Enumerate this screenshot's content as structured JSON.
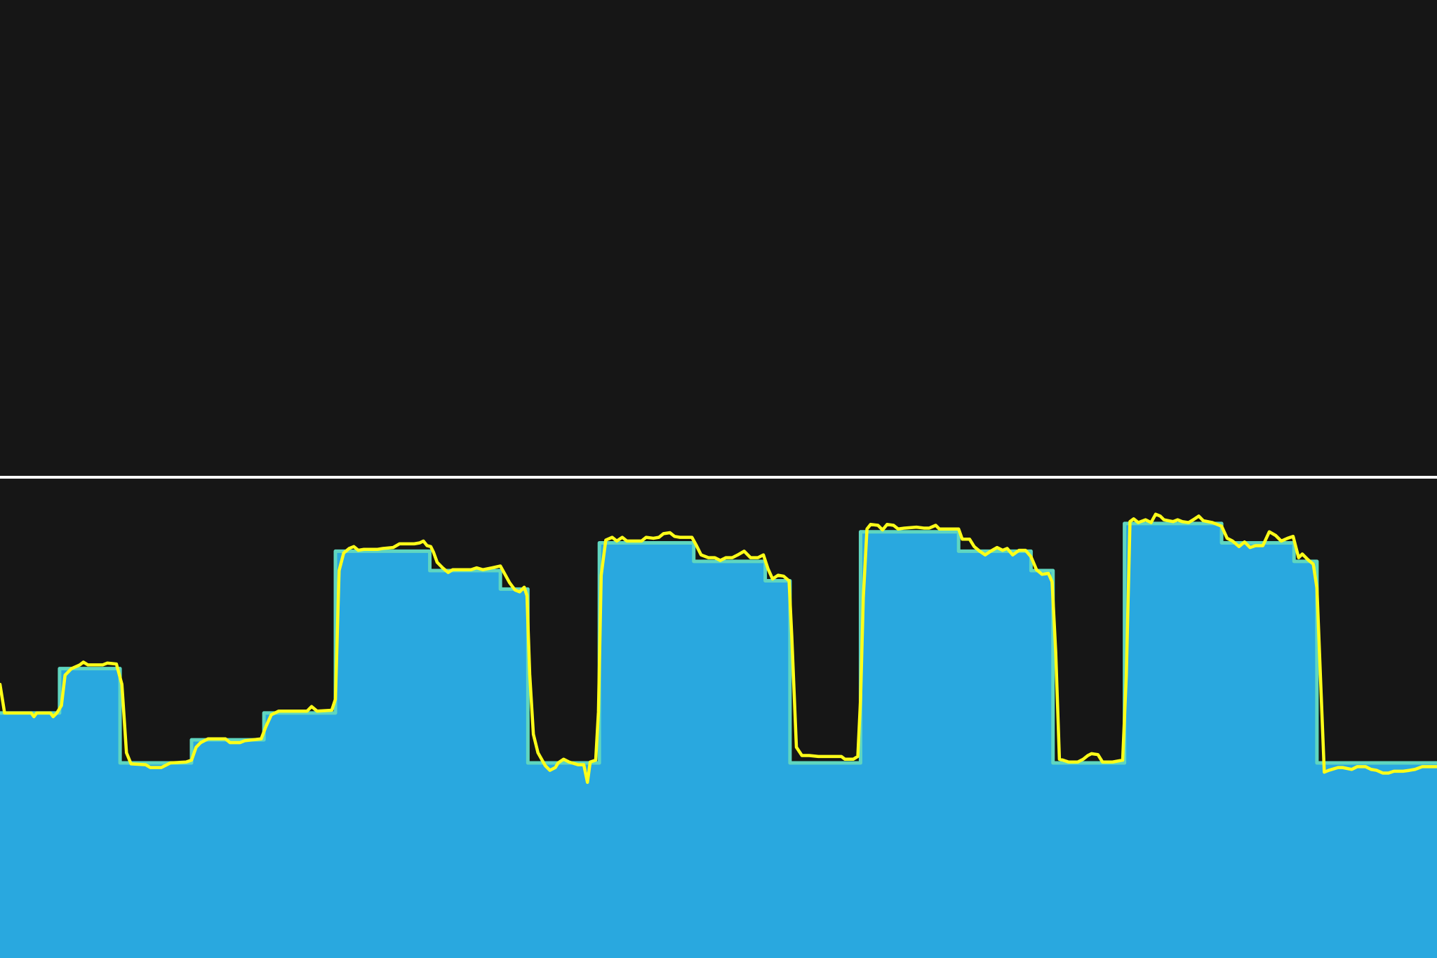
{
  "chart_data": {
    "type": "area",
    "title": "",
    "xlabel": "",
    "ylabel": "",
    "grid": false,
    "legend": "none",
    "xlim": [
      0,
      1568
    ],
    "ylim": [
      0,
      520
    ],
    "reference_line": {
      "y": 520,
      "color": "#ffffff"
    },
    "colors": {
      "background": "#161616",
      "area_fill": "#29a8df",
      "area_edge": "#5fd6c0",
      "overlay_line": "#ffff19",
      "reference_line": "#ffffff"
    },
    "series": [
      {
        "type": "area",
        "step": true,
        "color": "#29a8df",
        "points": [
          [
            0,
            265
          ],
          [
            65,
            265
          ],
          [
            65,
            313
          ],
          [
            131,
            313
          ],
          [
            131,
            211
          ],
          [
            209,
            211
          ],
          [
            209,
            236
          ],
          [
            288,
            236
          ],
          [
            288,
            265
          ],
          [
            366,
            265
          ],
          [
            366,
            440
          ],
          [
            469,
            440
          ],
          [
            469,
            419
          ],
          [
            546,
            419
          ],
          [
            546,
            399
          ],
          [
            576,
            399
          ],
          [
            576,
            211
          ],
          [
            654,
            211
          ],
          [
            654,
            449
          ],
          [
            757,
            449
          ],
          [
            757,
            429
          ],
          [
            835,
            429
          ],
          [
            835,
            408
          ],
          [
            862,
            408
          ],
          [
            862,
            211
          ],
          [
            939,
            211
          ],
          [
            939,
            461
          ],
          [
            1046,
            461
          ],
          [
            1046,
            440
          ],
          [
            1125,
            440
          ],
          [
            1125,
            419
          ],
          [
            1149,
            419
          ],
          [
            1149,
            211
          ],
          [
            1227,
            211
          ],
          [
            1227,
            470
          ],
          [
            1333,
            470
          ],
          [
            1333,
            449
          ],
          [
            1412,
            449
          ],
          [
            1412,
            429
          ],
          [
            1437,
            429
          ],
          [
            1437,
            211
          ],
          [
            1568,
            211
          ]
        ]
      },
      {
        "type": "line",
        "color": "#ffff19",
        "points": [
          [
            0,
            296
          ],
          [
            5,
            265
          ],
          [
            34,
            265
          ],
          [
            37,
            261
          ],
          [
            40,
            265
          ],
          [
            55,
            265
          ],
          [
            58,
            261
          ],
          [
            62,
            265
          ],
          [
            67,
            273
          ],
          [
            71,
            306
          ],
          [
            78,
            313
          ],
          [
            87,
            317
          ],
          [
            91,
            320
          ],
          [
            96,
            317
          ],
          [
            112,
            317
          ],
          [
            117,
            319
          ],
          [
            127,
            318
          ],
          [
            133,
            296
          ],
          [
            138,
            222
          ],
          [
            143,
            210
          ],
          [
            159,
            209
          ],
          [
            164,
            206
          ],
          [
            176,
            206
          ],
          [
            186,
            211
          ],
          [
            203,
            212
          ],
          [
            209,
            214
          ],
          [
            214,
            228
          ],
          [
            219,
            233
          ],
          [
            227,
            237
          ],
          [
            246,
            237
          ],
          [
            251,
            233
          ],
          [
            262,
            233
          ],
          [
            267,
            235
          ],
          [
            285,
            237
          ],
          [
            290,
            250
          ],
          [
            296,
            263
          ],
          [
            304,
            267
          ],
          [
            335,
            267
          ],
          [
            340,
            272
          ],
          [
            346,
            267
          ],
          [
            362,
            268
          ],
          [
            366,
            280
          ],
          [
            370,
            419
          ],
          [
            375,
            438
          ],
          [
            381,
            443
          ],
          [
            386,
            445
          ],
          [
            391,
            441
          ],
          [
            397,
            442
          ],
          [
            405,
            442
          ],
          [
            412,
            442
          ],
          [
            418,
            443
          ],
          [
            429,
            444
          ],
          [
            436,
            448
          ],
          [
            445,
            448
          ],
          [
            452,
            448
          ],
          [
            458,
            449
          ],
          [
            462,
            451
          ],
          [
            466,
            446
          ],
          [
            470,
            445
          ],
          [
            473,
            439
          ],
          [
            477,
            428
          ],
          [
            483,
            422
          ],
          [
            489,
            417
          ],
          [
            494,
            420
          ],
          [
            498,
            420
          ],
          [
            506,
            420
          ],
          [
            514,
            420
          ],
          [
            520,
            422
          ],
          [
            527,
            420
          ],
          [
            537,
            422
          ],
          [
            546,
            424
          ],
          [
            551,
            415
          ],
          [
            556,
            406
          ],
          [
            562,
            398
          ],
          [
            567,
            396
          ],
          [
            572,
            401
          ],
          [
            575,
            392
          ],
          [
            578,
            307
          ],
          [
            582,
            242
          ],
          [
            587,
            222
          ],
          [
            595,
            208
          ],
          [
            600,
            203
          ],
          [
            606,
            206
          ],
          [
            609,
            211
          ],
          [
            615,
            215
          ],
          [
            621,
            212
          ],
          [
            631,
            209
          ],
          [
            637,
            209
          ],
          [
            641,
            190
          ],
          [
            644,
            212
          ],
          [
            650,
            214
          ],
          [
            653,
            266
          ],
          [
            656,
            414
          ],
          [
            661,
            452
          ],
          [
            668,
            455
          ],
          [
            673,
            451
          ],
          [
            679,
            455
          ],
          [
            684,
            451
          ],
          [
            694,
            451
          ],
          [
            700,
            451
          ],
          [
            705,
            455
          ],
          [
            713,
            454
          ],
          [
            719,
            455
          ],
          [
            724,
            459
          ],
          [
            731,
            460
          ],
          [
            736,
            456
          ],
          [
            742,
            455
          ],
          [
            749,
            455
          ],
          [
            755,
            455
          ],
          [
            760,
            446
          ],
          [
            765,
            436
          ],
          [
            773,
            433
          ],
          [
            780,
            433
          ],
          [
            786,
            430
          ],
          [
            792,
            433
          ],
          [
            799,
            433
          ],
          [
            805,
            436
          ],
          [
            812,
            440
          ],
          [
            819,
            433
          ],
          [
            827,
            433
          ],
          [
            833,
            436
          ],
          [
            838,
            421
          ],
          [
            843,
            410
          ],
          [
            849,
            414
          ],
          [
            855,
            413
          ],
          [
            861,
            408
          ],
          [
            864,
            347
          ],
          [
            869,
            228
          ],
          [
            875,
            219
          ],
          [
            883,
            219
          ],
          [
            893,
            218
          ],
          [
            911,
            218
          ],
          [
            918,
            218
          ],
          [
            922,
            215
          ],
          [
            931,
            215
          ],
          [
            936,
            218
          ],
          [
            939,
            280
          ],
          [
            942,
            390
          ],
          [
            946,
            464
          ],
          [
            950,
            469
          ],
          [
            958,
            468
          ],
          [
            963,
            463
          ],
          [
            968,
            469
          ],
          [
            975,
            468
          ],
          [
            980,
            464
          ],
          [
            987,
            465
          ],
          [
            1000,
            466
          ],
          [
            1008,
            465
          ],
          [
            1014,
            465
          ],
          [
            1021,
            468
          ],
          [
            1025,
            464
          ],
          [
            1046,
            464
          ],
          [
            1050,
            453
          ],
          [
            1058,
            453
          ],
          [
            1063,
            445
          ],
          [
            1069,
            440
          ],
          [
            1075,
            436
          ],
          [
            1081,
            440
          ],
          [
            1088,
            444
          ],
          [
            1094,
            441
          ],
          [
            1099,
            443
          ],
          [
            1105,
            436
          ],
          [
            1112,
            441
          ],
          [
            1119,
            441
          ],
          [
            1125,
            434
          ],
          [
            1131,
            420
          ],
          [
            1137,
            415
          ],
          [
            1144,
            416
          ],
          [
            1148,
            407
          ],
          [
            1152,
            330
          ],
          [
            1156,
            215
          ],
          [
            1160,
            214
          ],
          [
            1166,
            212
          ],
          [
            1176,
            212
          ],
          [
            1182,
            215
          ],
          [
            1187,
            219
          ],
          [
            1191,
            221
          ],
          [
            1198,
            220
          ],
          [
            1203,
            212
          ],
          [
            1214,
            212
          ],
          [
            1225,
            214
          ],
          [
            1229,
            306
          ],
          [
            1233,
            472
          ],
          [
            1237,
            475
          ],
          [
            1242,
            471
          ],
          [
            1250,
            474
          ],
          [
            1256,
            471
          ],
          [
            1261,
            480
          ],
          [
            1266,
            478
          ],
          [
            1270,
            474
          ],
          [
            1275,
            473
          ],
          [
            1280,
            472
          ],
          [
            1285,
            474
          ],
          [
            1290,
            472
          ],
          [
            1297,
            471
          ],
          [
            1302,
            474
          ],
          [
            1308,
            478
          ],
          [
            1313,
            473
          ],
          [
            1323,
            471
          ],
          [
            1333,
            467
          ],
          [
            1339,
            454
          ],
          [
            1345,
            451
          ],
          [
            1352,
            445
          ],
          [
            1358,
            450
          ],
          [
            1364,
            444
          ],
          [
            1370,
            446
          ],
          [
            1378,
            446
          ],
          [
            1385,
            461
          ],
          [
            1392,
            457
          ],
          [
            1398,
            451
          ],
          [
            1405,
            454
          ],
          [
            1411,
            456
          ],
          [
            1417,
            433
          ],
          [
            1421,
            437
          ],
          [
            1427,
            431
          ],
          [
            1433,
            426
          ],
          [
            1437,
            400
          ],
          [
            1441,
            300
          ],
          [
            1445,
            201
          ],
          [
            1450,
            203
          ],
          [
            1460,
            206
          ],
          [
            1465,
            206
          ],
          [
            1475,
            204
          ],
          [
            1481,
            207
          ],
          [
            1490,
            207
          ],
          [
            1496,
            204
          ],
          [
            1502,
            203
          ],
          [
            1509,
            200
          ],
          [
            1515,
            200
          ],
          [
            1521,
            202
          ],
          [
            1531,
            202
          ],
          [
            1538,
            203
          ],
          [
            1544,
            204
          ],
          [
            1552,
            207
          ],
          [
            1568,
            207
          ]
        ]
      }
    ]
  }
}
